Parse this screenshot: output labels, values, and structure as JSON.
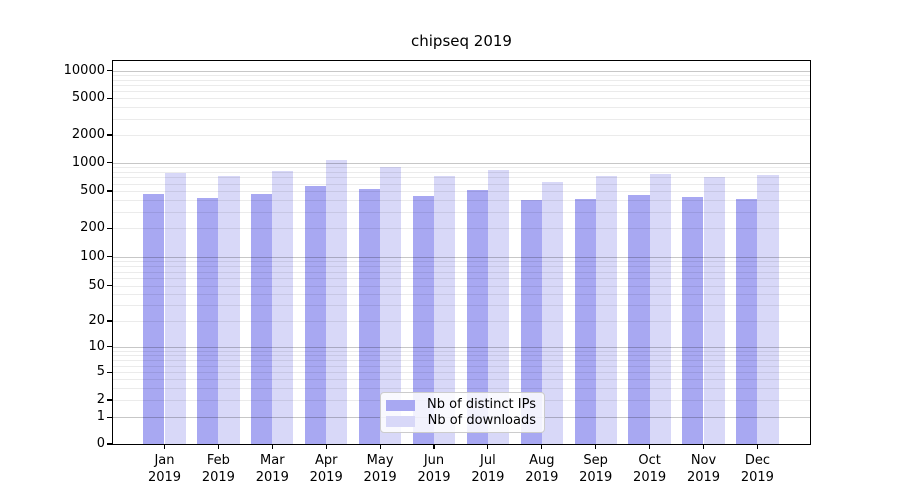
{
  "chart_data": {
    "type": "bar",
    "title": "chipseq 2019",
    "categories": [
      "Jan",
      "Feb",
      "Mar",
      "Apr",
      "May",
      "Jun",
      "Jul",
      "Aug",
      "Sep",
      "Oct",
      "Nov",
      "Dec"
    ],
    "category_year": "2019",
    "series": [
      {
        "name": "Nb of distinct IPs",
        "color": "#a8a8f2",
        "values": [
          470,
          425,
          460,
          565,
          530,
          440,
          510,
          400,
          410,
          450,
          430,
          415
        ]
      },
      {
        "name": "Nb of downloads",
        "color": "#d8d8f8",
        "values": [
          785,
          720,
          820,
          1060,
          895,
          720,
          835,
          625,
          715,
          760,
          710,
          740
        ]
      }
    ],
    "yscale": "symlog",
    "yticks": [
      0,
      1,
      2,
      5,
      10,
      20,
      50,
      100,
      200,
      500,
      1000,
      2000,
      5000,
      10000
    ],
    "ylim": [
      0,
      12500
    ],
    "grid": "both",
    "legend_position": "lower center",
    "xlabel": "",
    "ylabel": ""
  },
  "colors": {
    "bar_distinct_ips": "#a8a8f2",
    "bar_downloads": "#d8d8f8",
    "grid_major": "#c7c7c7",
    "grid_minor": "#ebebeb",
    "axis": "#000000",
    "background": "#ffffff",
    "legend_border": "#cccccc"
  }
}
